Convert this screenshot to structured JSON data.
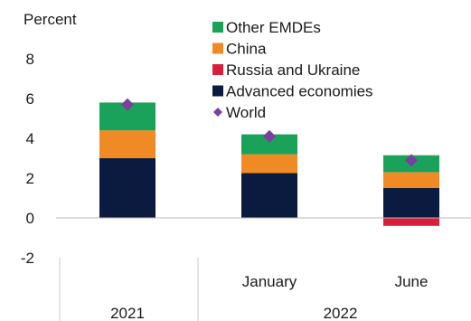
{
  "chart_data": {
    "type": "bar",
    "stacked": true,
    "ylabel": "Percent",
    "ylim": [
      -2,
      8
    ],
    "yticks": [
      -2,
      0,
      2,
      4,
      6,
      8
    ],
    "categories": [
      "",
      "January",
      "June"
    ],
    "groups": [
      "2021",
      "2022"
    ],
    "series": [
      {
        "name": "Advanced economies",
        "color": "#0b1a3f",
        "values": [
          3.0,
          2.25,
          1.5
        ]
      },
      {
        "name": "Russia and Ukraine",
        "color": "#d81f3c",
        "values": [
          0.0,
          0.0,
          -0.4
        ]
      },
      {
        "name": "China",
        "color": "#f08a24",
        "values": [
          1.4,
          0.95,
          0.8
        ]
      },
      {
        "name": "Other EMDEs",
        "color": "#1aa15a",
        "values": [
          1.4,
          1.0,
          0.85
        ]
      }
    ],
    "world": {
      "name": "World",
      "color": "#7b3fa0",
      "values": [
        5.7,
        4.1,
        2.9
      ]
    },
    "legend_order": [
      "Other EMDEs",
      "China",
      "Russia and Ukraine",
      "Advanced economies",
      "World"
    ],
    "grid": false,
    "legend_position": "top-center"
  }
}
